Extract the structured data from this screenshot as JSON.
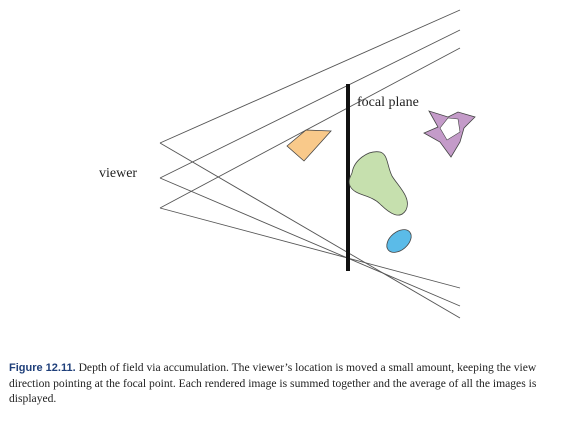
{
  "figure": {
    "viewer_label": "viewer",
    "focal_plane_label": "focal plane",
    "colors": {
      "lines": "#555555",
      "focal_plane": "#111111",
      "quad_fill": "#f9c98a",
      "blob_fill": "#c6e0ae",
      "star_fill": "#c49bc9",
      "ellipse_fill": "#5bbbe8",
      "shape_stroke": "#444444"
    }
  },
  "caption": {
    "label": "Figure 12.11.",
    "text": "Depth of field via accumulation. The viewer’s location is moved a small amount, keeping the view direction pointing at the focal point. Each rendered image is summed together and the average of all the images is displayed."
  }
}
